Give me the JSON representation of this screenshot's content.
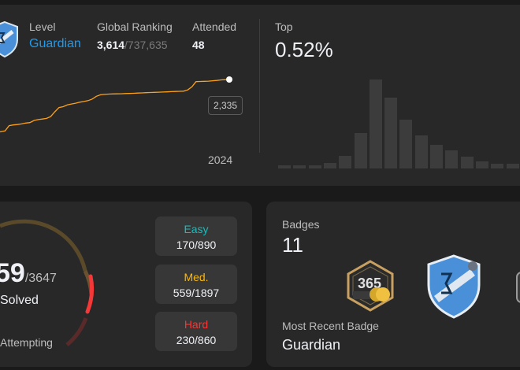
{
  "contest": {
    "level_label": "Level",
    "level_value": "Guardian",
    "ranking_label": "Global Ranking",
    "ranking_value": "3,614",
    "ranking_total": "/737,635",
    "attended_label": "Attended",
    "attended_value": "48",
    "rating_tooltip": "2,335",
    "year_label": "2024",
    "top_label": "Top",
    "top_value": "0.52%",
    "rating_history": [
      1668,
      1676,
      1690,
      1712,
      1730,
      1738,
      1800,
      1808,
      1812,
      1820,
      1830,
      1835,
      1860,
      1870,
      1876,
      1884,
      1905,
      1960,
      2010,
      2020,
      2040,
      2051,
      2060,
      2072,
      2080,
      2090,
      2108,
      2140,
      2158,
      2162,
      2166,
      2168,
      2169,
      2170,
      2172,
      2173,
      2175,
      2178,
      2180,
      2182,
      2184,
      2186,
      2188,
      2190,
      2192,
      2194,
      2196,
      2198,
      2200,
      2214,
      2250,
      2310,
      2312,
      2314,
      2316,
      2320,
      2324,
      2330,
      2333,
      2335
    ],
    "distribution": [
      4,
      4,
      4,
      6,
      14,
      40,
      100,
      80,
      55,
      37,
      27,
      20,
      13,
      8,
      5,
      5,
      5,
      4
    ]
  },
  "solved": {
    "count_partial": "59",
    "total": "/3647",
    "solved_label": "Solved",
    "attempting_label": "Attempting",
    "difficulties": [
      {
        "name": "Easy",
        "count": "170/890",
        "color": "#1cbaba"
      },
      {
        "name": "Med.",
        "count": "559/1897",
        "color": "#ffb700"
      },
      {
        "name": "Hard",
        "count": "230/860",
        "color": "#f63737"
      }
    ]
  },
  "badges": {
    "label": "Badges",
    "count": "11",
    "recent_label": "Most Recent Badge",
    "recent_value": "Guardian",
    "items": [
      {
        "icon": "365-days-badge-icon"
      },
      {
        "icon": "guardian-badge-icon"
      },
      {
        "icon": "partial-badge-icon"
      }
    ]
  },
  "colors": {
    "accent": "#1d9bf0",
    "chart_line": "#ffa116",
    "easy": "#1cbaba",
    "medium": "#ffb700",
    "hard": "#f63737"
  }
}
